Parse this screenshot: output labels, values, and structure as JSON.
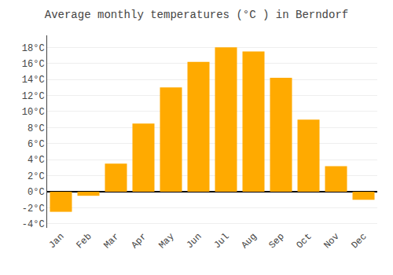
{
  "chart_data": {
    "type": "bar",
    "title": "Average monthly temperatures (°C ) in Berndorf",
    "categories": [
      "Jan",
      "Feb",
      "Mar",
      "Apr",
      "May",
      "Jun",
      "Jul",
      "Aug",
      "Sep",
      "Oct",
      "Nov",
      "Dec"
    ],
    "values": [
      -2.5,
      -0.5,
      3.5,
      8.5,
      13.0,
      16.2,
      18.0,
      17.5,
      14.2,
      9.0,
      3.2,
      -1.0
    ],
    "color": "#FFAA00",
    "ylim": [
      -4.5,
      19.5
    ],
    "yticks": [
      {
        "value": -4,
        "label": "-4°C"
      },
      {
        "value": -2,
        "label": "-2°C"
      },
      {
        "value": 0,
        "label": "0°C"
      },
      {
        "value": 2,
        "label": "2°C"
      },
      {
        "value": 4,
        "label": "4°C"
      },
      {
        "value": 6,
        "label": "6°C"
      },
      {
        "value": 8,
        "label": "8°C"
      },
      {
        "value": 10,
        "label": "10°C"
      },
      {
        "value": 12,
        "label": "12°C"
      },
      {
        "value": 14,
        "label": "14°C"
      },
      {
        "value": 16,
        "label": "16°C"
      },
      {
        "value": 18,
        "label": "18°C"
      }
    ],
    "grid": true
  }
}
